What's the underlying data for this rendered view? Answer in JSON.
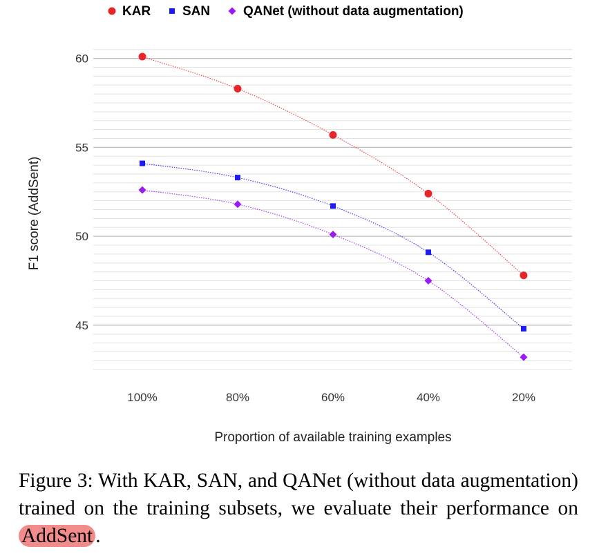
{
  "chart_data": {
    "type": "line",
    "title": "",
    "xlabel": "Proportion of available training examples",
    "ylabel": "F1 score (AddSent)",
    "categories": [
      "100%",
      "80%",
      "60%",
      "40%",
      "20%"
    ],
    "y_ticks": [
      45,
      50,
      55,
      60
    ],
    "ylim": [
      42.2,
      60.8
    ],
    "grid": true,
    "legend_position": "top",
    "series": [
      {
        "name": "KAR",
        "values": [
          60.1,
          58.3,
          55.7,
          52.4,
          47.8
        ],
        "color": "#e8262a",
        "marker": "circle"
      },
      {
        "name": "SAN",
        "values": [
          54.1,
          53.3,
          51.7,
          49.1,
          44.8
        ],
        "color": "#1c1cf0",
        "marker": "square"
      },
      {
        "name": "QANet (without data augmentation)",
        "values": [
          52.6,
          51.8,
          50.1,
          47.5,
          43.2
        ],
        "color": "#9b1cf0",
        "marker": "diamond"
      }
    ]
  },
  "caption": {
    "prefix": "Figure 3:  With KAR, SAN, and QANet (without data augmentation) trained on the training subsets, we evaluate their performance on ",
    "highlight": "AddSent",
    "suffix": "."
  }
}
